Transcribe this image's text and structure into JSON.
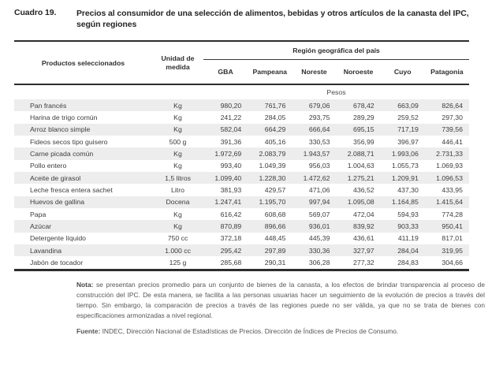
{
  "title": {
    "cuadro_label": "Cuadro 19.",
    "text": "Precios al consumidor de una selección de alimentos, bebidas y otros artículos de la canasta del IPC, según regiones"
  },
  "table": {
    "col_product_header": "Productos seleccionados",
    "col_unit_header": "Unidad de medida",
    "region_group_header": "Región geográfica del país",
    "regions": [
      "GBA",
      "Pampeana",
      "Noreste",
      "Noroeste",
      "Cuyo",
      "Patagonia"
    ],
    "currency_band": "Pesos",
    "rows": [
      {
        "product": "Pan francés",
        "unit": "Kg",
        "values": [
          "980,20",
          "761,76",
          "679,06",
          "678,42",
          "663,09",
          "826,64"
        ]
      },
      {
        "product": "Harina de trigo común",
        "unit": "Kg",
        "values": [
          "241,22",
          "284,05",
          "293,75",
          "289,29",
          "259,52",
          "297,30"
        ]
      },
      {
        "product": "Arroz blanco simple",
        "unit": "Kg",
        "values": [
          "582,04",
          "664,29",
          "666,64",
          "695,15",
          "717,19",
          "739,56"
        ]
      },
      {
        "product": "Fideos secos tipo guisero",
        "unit": "500 g",
        "values": [
          "391,36",
          "405,16",
          "330,53",
          "356,99",
          "396,97",
          "446,41"
        ]
      },
      {
        "product": "Carne picada común",
        "unit": "Kg",
        "values": [
          "1.972,69",
          "2.083,79",
          "1.943,57",
          "2.088,71",
          "1.993,06",
          "2.731,33"
        ]
      },
      {
        "product": "Pollo entero",
        "unit": "Kg",
        "values": [
          "993,40",
          "1.049,39",
          "956,03",
          "1.004,63",
          "1.055,73",
          "1.069,93"
        ]
      },
      {
        "product": "Aceite de girasol",
        "unit": "1,5 litros",
        "values": [
          "1.099,40",
          "1.228,30",
          "1.472,62",
          "1.275,21",
          "1.209,91",
          "1.096,53"
        ]
      },
      {
        "product": "Leche fresca entera sachet",
        "unit": "Litro",
        "values": [
          "381,93",
          "429,57",
          "471,06",
          "436,52",
          "437,30",
          "433,95"
        ]
      },
      {
        "product": "Huevos de gallina",
        "unit": "Docena",
        "values": [
          "1.247,41",
          "1.195,70",
          "997,94",
          "1.095,08",
          "1.164,85",
          "1.415,64"
        ]
      },
      {
        "product": "Papa",
        "unit": "Kg",
        "values": [
          "616,42",
          "608,68",
          "569,07",
          "472,04",
          "594,93",
          "774,28"
        ]
      },
      {
        "product": "Azúcar",
        "unit": "Kg",
        "values": [
          "870,89",
          "896,66",
          "936,01",
          "839,92",
          "903,33",
          "950,41"
        ]
      },
      {
        "product": "Detergente líquido",
        "unit": "750 cc",
        "values": [
          "372,18",
          "448,45",
          "445,39",
          "436,61",
          "411,19",
          "817,01"
        ]
      },
      {
        "product": "Lavandina",
        "unit": "1.000 cc",
        "values": [
          "295,42",
          "297,89",
          "330,36",
          "327,97",
          "284,04",
          "319,95"
        ]
      },
      {
        "product": "Jabón de tocador",
        "unit": "125 g",
        "values": [
          "285,68",
          "290,31",
          "306,28",
          "277,32",
          "284,83",
          "304,66"
        ]
      }
    ]
  },
  "notes": {
    "nota_label": "Nota:",
    "nota_text": " se presentan precios promedio para un conjunto de bienes de la canasta, a los efectos de brindar transparencia al proceso de construcción del IPC. De esta manera, se facilita a las personas usuarias hacer un seguimiento de la evolución de precios a través del tiempo. Sin embargo, la comparación de precios a través de las regiones puede no ser válida, ya que no se trata de bienes con especificaciones armonizadas a nivel regional.",
    "fuente_label": "Fuente:",
    "fuente_text": " INDEC, Dirección Nacional de Estadísticas de Precios. Dirección de Índices de Precios de Consumo."
  },
  "colors": {
    "rule_dark": "#2d2d2d",
    "row_shade": "#ededed",
    "body_text": "#3d3d3d",
    "note_text": "#56565a"
  }
}
